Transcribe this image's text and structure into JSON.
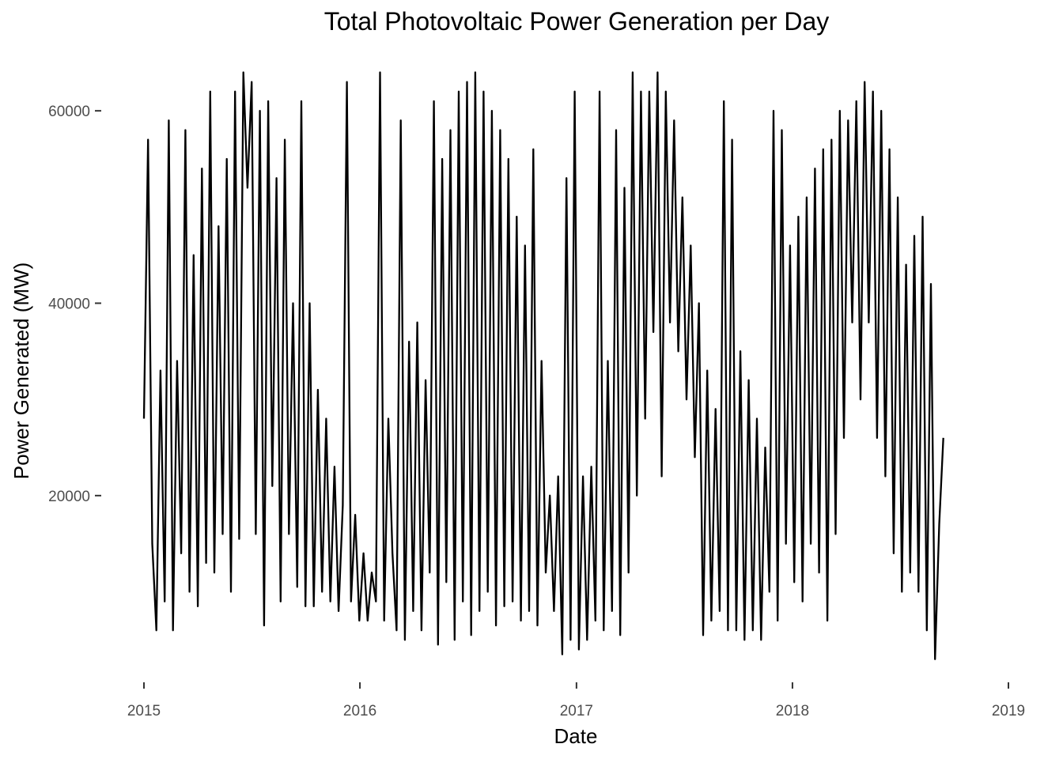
{
  "chart_data": {
    "type": "line",
    "title": "Total Photovoltaic Power Generation per Day",
    "xlabel": "Date",
    "ylabel": "Power Generated (MW)",
    "x_ticks": [
      "2015",
      "2016",
      "2017",
      "2018",
      "2019"
    ],
    "y_ticks": [
      "20000",
      "40000",
      "60000"
    ],
    "xlim": [
      "2015-01-01",
      "2019-01-01"
    ],
    "ylim": [
      1000,
      67000
    ],
    "grid": false,
    "legend": "none",
    "line_color": "#000000",
    "series": [
      {
        "start_date": "2015-01-01",
        "interval": "7 days",
        "values": [
          28000,
          57000,
          15000,
          6000,
          33000,
          9000,
          59000,
          6000,
          34000,
          14000,
          58000,
          10000,
          45000,
          8500,
          54000,
          13000,
          62000,
          12000,
          48000,
          16000,
          55000,
          10000,
          62000,
          15500,
          64000,
          52000,
          63000,
          16000,
          60000,
          6500,
          61000,
          21000,
          53000,
          9000,
          57000,
          16000,
          40000,
          10500,
          61000,
          8500,
          40000,
          8500,
          31000,
          10000,
          28000,
          9000,
          23000,
          8000,
          19000,
          63000,
          9000,
          18000,
          7000,
          14000,
          7000,
          12000,
          9000,
          64000,
          7000,
          28000,
          14000,
          6000,
          59000,
          5000,
          36000,
          8000,
          38000,
          6000,
          32000,
          12000,
          61000,
          4500,
          55000,
          11000,
          58000,
          5000,
          62000,
          9000,
          63000,
          5500,
          64000,
          8000,
          62000,
          10000,
          60000,
          6500,
          58000,
          8500,
          55000,
          9000,
          49000,
          7000,
          46000,
          8000,
          56000,
          6500,
          34000,
          12000,
          20000,
          8000,
          22000,
          3500,
          53000,
          5000,
          62000,
          4000,
          22000,
          5000,
          23000,
          7000,
          62000,
          6000,
          34000,
          8000,
          58000,
          5500,
          52000,
          12000,
          64000,
          20000,
          62000,
          28000,
          62000,
          37000,
          64000,
          22000,
          62000,
          38000,
          59000,
          35000,
          51000,
          30000,
          46000,
          24000,
          40000,
          5500,
          33000,
          7000,
          29000,
          8000,
          61000,
          6000,
          57000,
          6000,
          35000,
          5000,
          32000,
          6000,
          28000,
          5000,
          25000,
          10000,
          60000,
          7000,
          58000,
          15000,
          46000,
          11000,
          49000,
          9000,
          51000,
          15000,
          54000,
          12000,
          56000,
          7000,
          57000,
          16000,
          60000,
          26000,
          59000,
          38000,
          61000,
          30000,
          63000,
          38000,
          62000,
          26000,
          60000,
          22000,
          56000,
          14000,
          51000,
          10000,
          44000,
          12000,
          47000,
          10000,
          49000,
          6000,
          42000,
          3000,
          17000,
          26000
        ]
      }
    ]
  }
}
